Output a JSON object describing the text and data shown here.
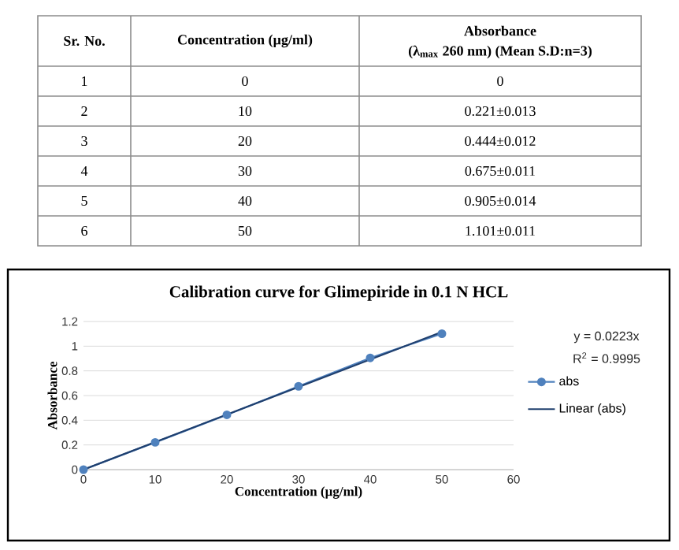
{
  "chart_data": {
    "type": "line",
    "title": "Calibration curve for Glimepiride in 0.1 N HCL",
    "xlabel": "Concentration (µg/ml)",
    "ylabel": "Absorbance",
    "xlim": [
      0,
      60
    ],
    "xticks": [
      0,
      10,
      20,
      30,
      40,
      50,
      60
    ],
    "ylim": [
      0,
      1.2
    ],
    "yticks": [
      0,
      0.2,
      0.4,
      0.6,
      0.8,
      1,
      1.2
    ],
    "grid": "y",
    "legend": "right",
    "series": [
      {
        "name": "abs",
        "color": "#4f81bd",
        "marker": "circle",
        "x": [
          0,
          10,
          20,
          30,
          40,
          50
        ],
        "values": [
          0,
          0.221,
          0.444,
          0.675,
          0.905,
          1.101
        ]
      },
      {
        "name": "Linear (abs)",
        "type": "line",
        "color": "#1f3f6e",
        "marker": "none",
        "x": [
          0,
          50
        ],
        "values": [
          0,
          1.115
        ]
      }
    ],
    "annotations": [
      "Sr. No.",
      "Concentration (µg/ml)",
      "Absorbance",
      "(λ$_{max}$ 260 nm) (Mean S.D:n=3)",
      "1",
      "0",
      "0",
      "2",
      "10",
      "0.221±0.013",
      "3",
      "20",
      "0.444±0.012",
      "4",
      "30",
      "0.675±0.011",
      "5",
      "40",
      "0.905±0.014",
      "6",
      "50",
      "1.101±0.011",
      "y = 0.0223x",
      "R$^{2}$ = 0.9995"
    ]
  }
}
